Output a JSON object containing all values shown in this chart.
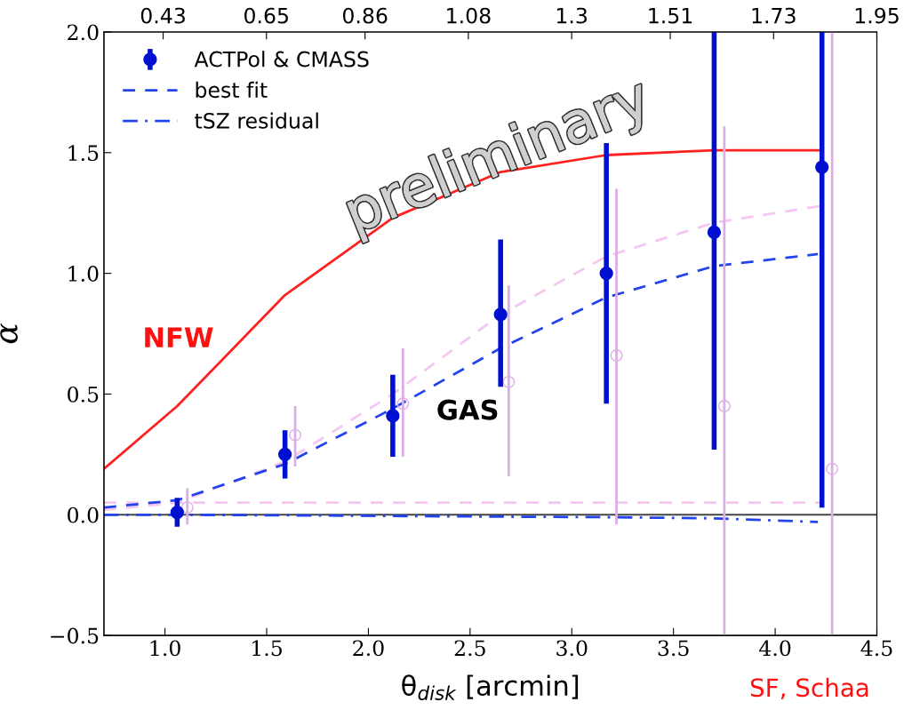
{
  "chart_data": {
    "type": "line",
    "xlabel": "θ$_{disk}$ [arcmin]",
    "ylabel": "α",
    "xlim": [
      0.7,
      4.5
    ],
    "xticks": [
      {
        "value": 1.0,
        "label": "1.0"
      },
      1.5,
      {
        "value": 2.0,
        "label": "2.0"
      },
      2.5,
      {
        "value": 3.0,
        "label": "3.0"
      },
      3.5,
      {
        "value": 4.0,
        "label": "4.0"
      },
      4.5
    ],
    "x2lim": [
      0.304,
      1.95
    ],
    "x2ticks": [
      0.43,
      0.65,
      0.86,
      1.08,
      1.3,
      1.51,
      1.73,
      1.95
    ],
    "ylim": [
      -0.5,
      2.0
    ],
    "yticks": [
      -0.5,
      {
        "value": 0.0,
        "label": "0.0"
      },
      0.5,
      {
        "value": 1.0,
        "label": "1.0"
      },
      1.5,
      {
        "value": 2.0,
        "label": "2.0"
      }
    ],
    "grid": false,
    "legend": "top left",
    "ref_lines": [
      {
        "axis": "y",
        "value": 0,
        "color": "#444444"
      }
    ],
    "series": [
      {
        "color": "#ff2020",
        "line_style": "solid",
        "x": [
          0.7,
          1.06,
          1.59,
          2.12,
          2.65,
          3.17,
          3.7,
          4.23
        ],
        "values": [
          0.19,
          0.45,
          0.91,
          1.23,
          1.42,
          1.49,
          1.51,
          1.51
        ]
      },
      {
        "color": "#f4c6f0",
        "line_style": "dashed",
        "x": [
          0.7,
          1.06,
          1.59,
          2.12,
          2.65,
          3.17,
          3.7,
          4.23
        ],
        "values": [
          0.02,
          0.05,
          0.22,
          0.5,
          0.83,
          1.07,
          1.21,
          1.28
        ]
      },
      {
        "color": "#f4c6f0",
        "line_style": "dashed",
        "x": [
          0.7,
          4.23
        ],
        "values": [
          0.05,
          0.05
        ]
      },
      {
        "type": "scatter",
        "color": "#dcaee6",
        "marker": "circle",
        "x": [
          1.11,
          1.64,
          2.17,
          2.69,
          3.22,
          3.75,
          4.28
        ],
        "values": [
          0.03,
          0.33,
          0.46,
          0.55,
          0.66,
          0.45,
          0.19
        ],
        "errors": [
          [
            -0.04,
            0.11
          ],
          [
            0.2,
            0.45
          ],
          [
            0.24,
            0.69
          ],
          [
            0.16,
            0.95
          ],
          [
            -0.04,
            1.35
          ],
          [
            -0.5,
            1.61
          ],
          [
            -0.5,
            2.0
          ]
        ]
      },
      {
        "name": "best fit",
        "color": "#2244ee",
        "line_style": "dashed",
        "x": [
          0.7,
          1.06,
          1.59,
          2.12,
          2.65,
          3.17,
          3.7,
          4.21
        ],
        "values": [
          0.03,
          0.06,
          0.21,
          0.44,
          0.69,
          0.9,
          1.03,
          1.08
        ]
      },
      {
        "name": "tSZ residual",
        "color": "#2244ee",
        "line_style": "dashdot",
        "x": [
          0.7,
          1.06,
          2.12,
          2.65,
          3.17,
          3.7,
          4.21
        ],
        "values": [
          0.0,
          0.0,
          -0.005,
          -0.008,
          -0.01,
          -0.015,
          -0.03
        ]
      },
      {
        "type": "scatter",
        "name": "ACTPol & CMASS",
        "color": "#0010d0",
        "marker": "circle",
        "x": [
          1.06,
          1.59,
          2.12,
          2.65,
          3.17,
          3.7,
          4.23
        ],
        "values": [
          0.01,
          0.25,
          0.41,
          0.83,
          1.0,
          1.17,
          1.44
        ],
        "errors": [
          [
            -0.05,
            0.07
          ],
          [
            0.15,
            0.35
          ],
          [
            0.24,
            0.58
          ],
          [
            0.53,
            1.14
          ],
          [
            0.46,
            1.54
          ],
          [
            0.27,
            2.0
          ],
          [
            0.03,
            2.0
          ]
        ]
      }
    ],
    "annotations": [
      "NFW",
      "GAS",
      "preliminary",
      "SF, Schaa"
    ]
  }
}
